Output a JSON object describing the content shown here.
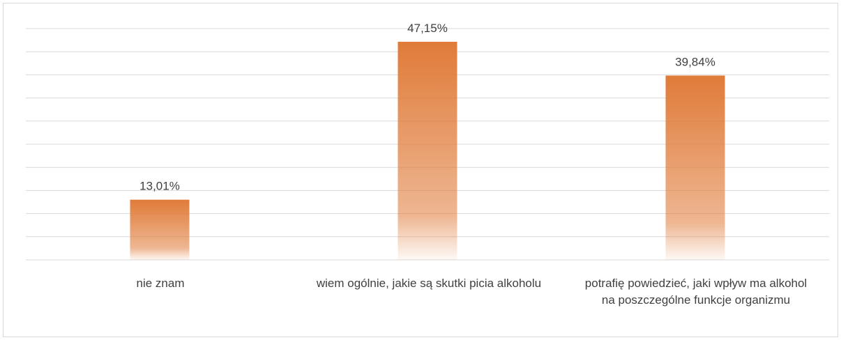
{
  "chart_data": {
    "type": "bar",
    "title": "",
    "xlabel": "",
    "ylabel": "",
    "ylim": [
      0,
      50
    ],
    "grid": true,
    "legend": "none",
    "categories": [
      "nie znam",
      "wiem ogólnie, jakie są skutki picia alkoholu",
      "potrafię powiedzieć, jaki wpływ ma alkohol na poszczególne funkcje organizmu"
    ],
    "values": [
      13.01,
      47.15,
      39.84
    ],
    "value_labels": [
      "13,01%",
      "47,15%",
      "39,84%"
    ],
    "bar_color": "#e07b39",
    "gridline_color": "#d9d9d9"
  }
}
